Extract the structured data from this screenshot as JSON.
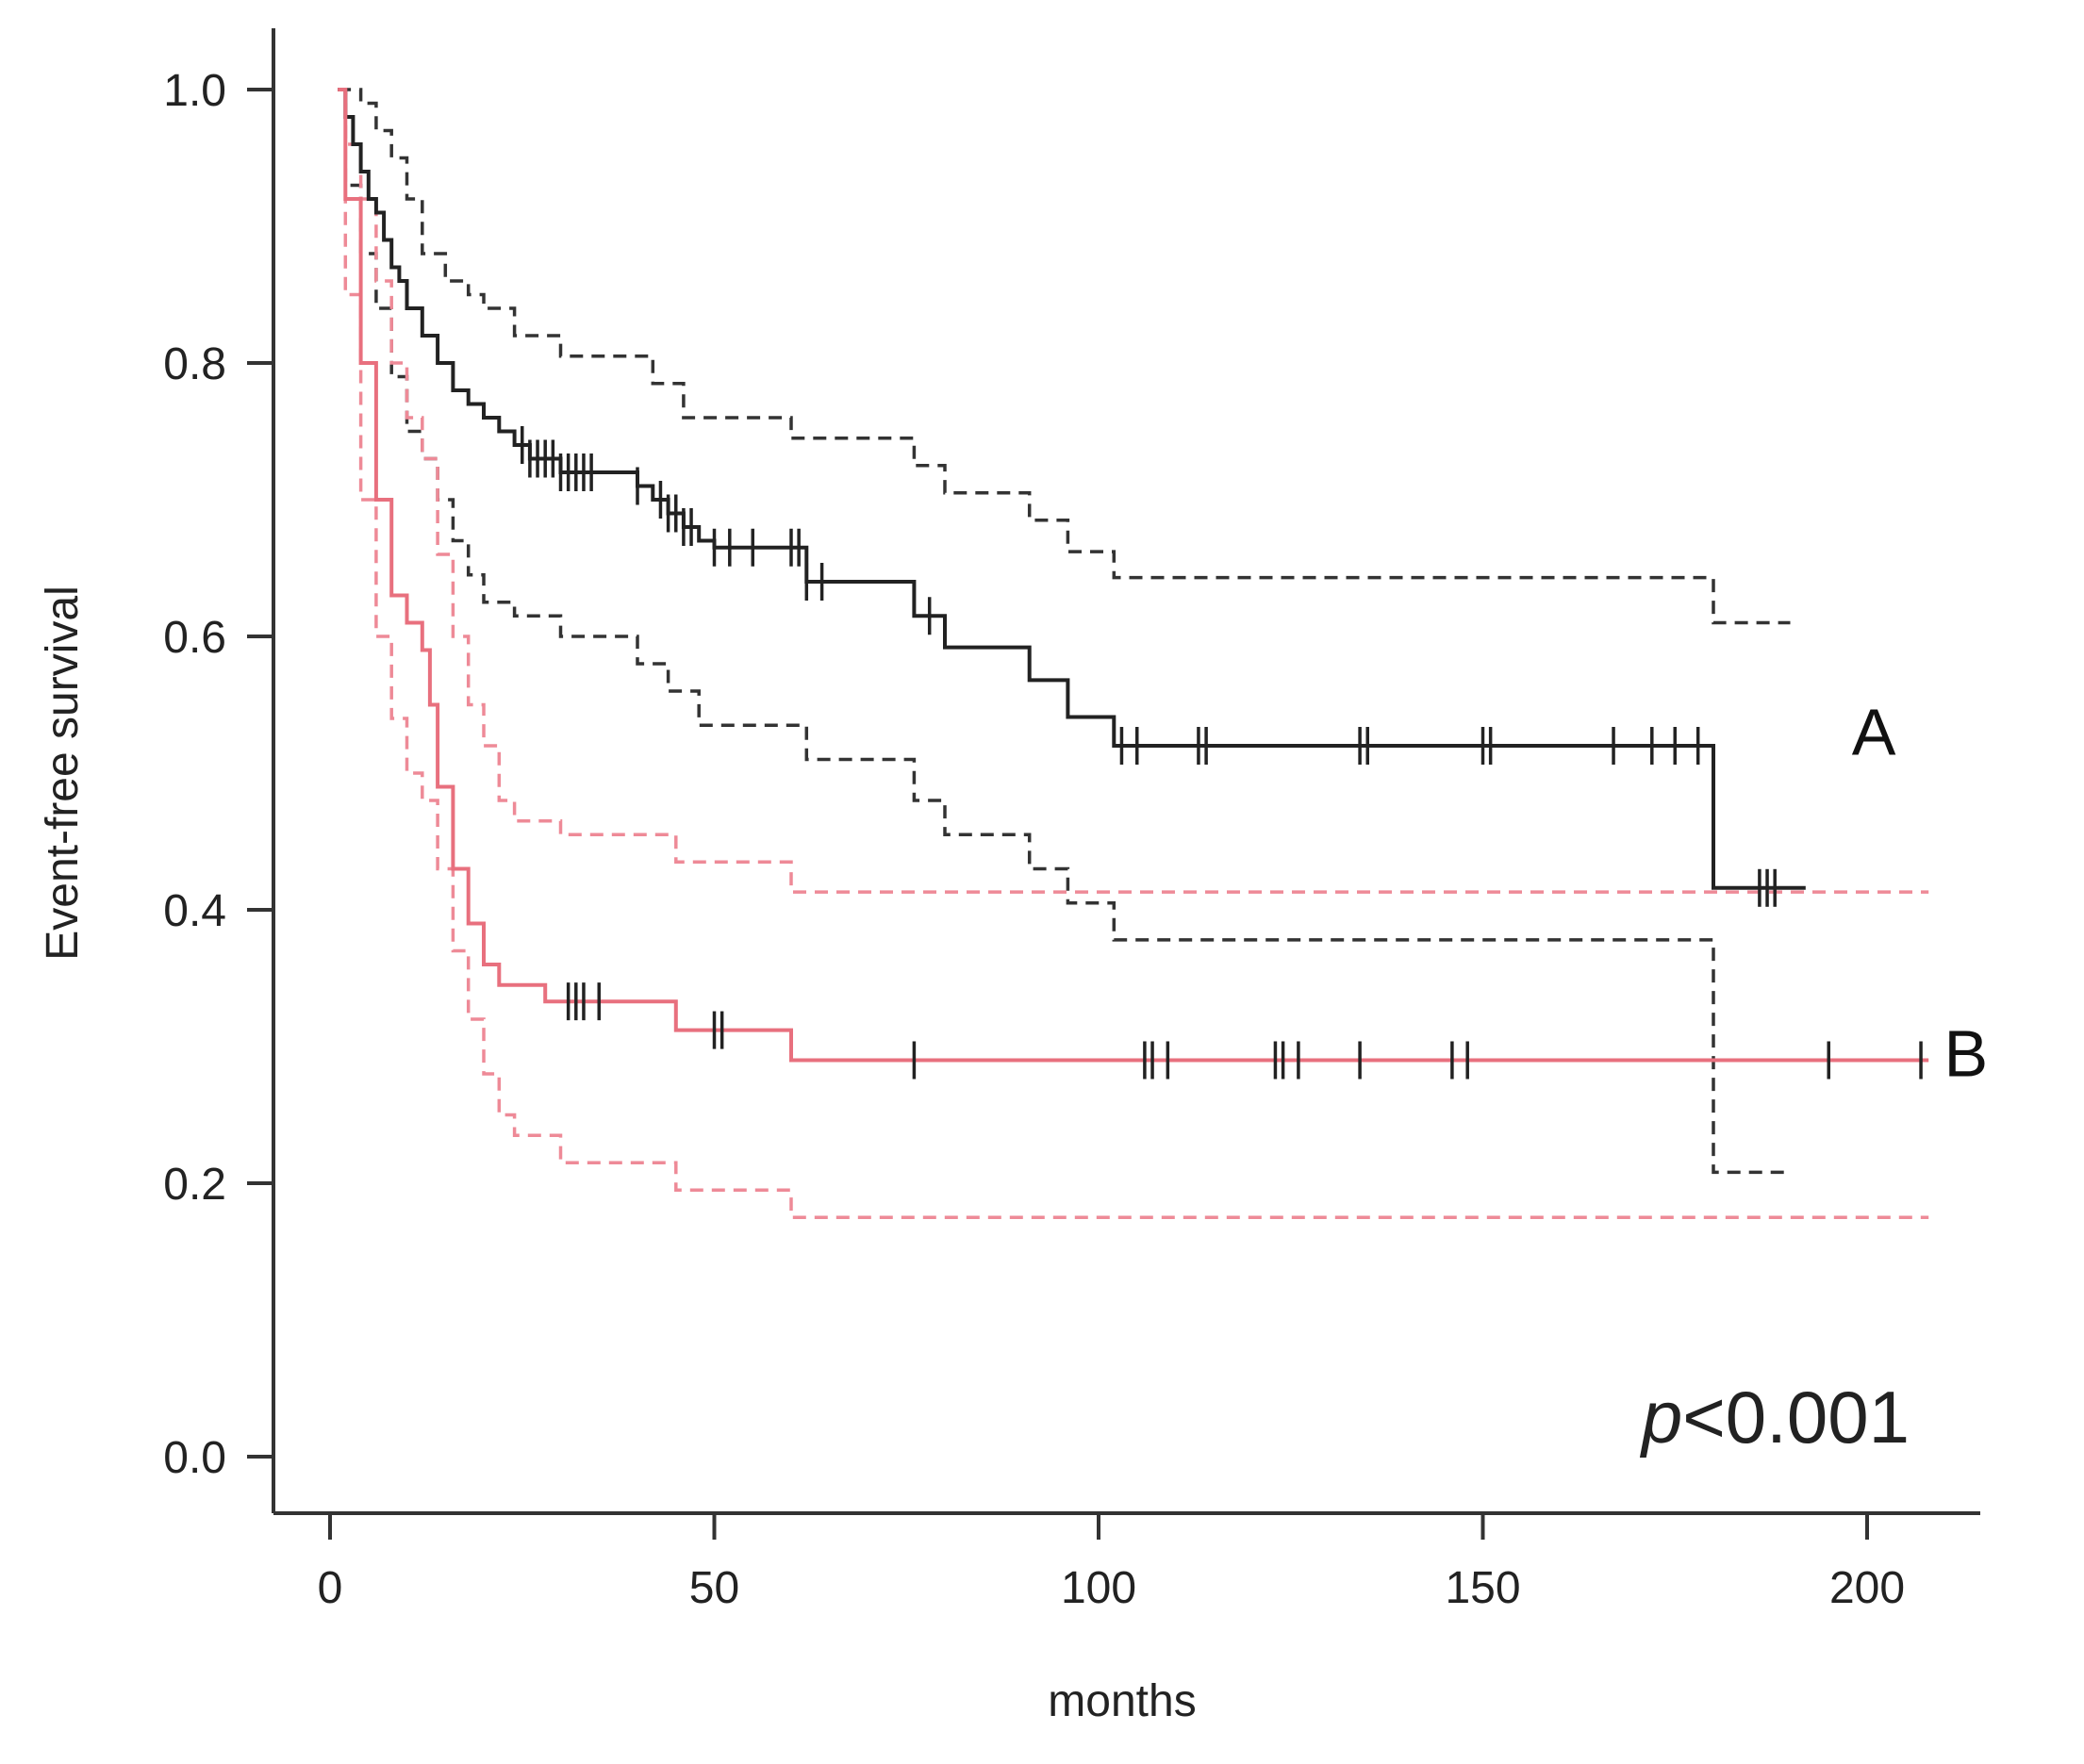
{
  "chart_data": {
    "type": "line",
    "subtype": "kaplan-meier",
    "title": "",
    "xlabel": "months",
    "ylabel": "Event-free survival",
    "xlim": [
      -8,
      215
    ],
    "ylim": [
      -0.05,
      1.03
    ],
    "xticks": [
      0,
      50,
      100,
      150,
      200
    ],
    "yticks": [
      0.0,
      0.2,
      0.4,
      0.6,
      0.8,
      1.0
    ],
    "xtick_labels": [
      "0",
      "50",
      "100",
      "150",
      "200"
    ],
    "ytick_labels": [
      "0.0",
      "0.2",
      "0.4",
      "0.6",
      "0.8",
      "1.0"
    ],
    "annotation": {
      "italic": "p",
      "rest": "<0.001"
    },
    "series": [
      {
        "name": "A",
        "label": "A",
        "color": "#222222",
        "label_point": [
          198,
          0.53
        ],
        "survival": [
          [
            1,
            1.0
          ],
          [
            2,
            0.98
          ],
          [
            3,
            0.96
          ],
          [
            4,
            0.94
          ],
          [
            5,
            0.92
          ],
          [
            6,
            0.91
          ],
          [
            7,
            0.89
          ],
          [
            8,
            0.87
          ],
          [
            9,
            0.86
          ],
          [
            10,
            0.84
          ],
          [
            12,
            0.82
          ],
          [
            14,
            0.8
          ],
          [
            16,
            0.78
          ],
          [
            18,
            0.77
          ],
          [
            20,
            0.76
          ],
          [
            22,
            0.75
          ],
          [
            24,
            0.74
          ],
          [
            26,
            0.73
          ],
          [
            30,
            0.72
          ],
          [
            40,
            0.71
          ],
          [
            42,
            0.7
          ],
          [
            44,
            0.69
          ],
          [
            46,
            0.68
          ],
          [
            48,
            0.67
          ],
          [
            50,
            0.665
          ],
          [
            62,
            0.64
          ],
          [
            76,
            0.615
          ],
          [
            80,
            0.592
          ],
          [
            91,
            0.568
          ],
          [
            96,
            0.541
          ],
          [
            102,
            0.52
          ],
          [
            180,
            0.52
          ],
          [
            180,
            0.416
          ],
          [
            192,
            0.416
          ]
        ],
        "upper": [
          [
            1,
            1.0
          ],
          [
            4,
            0.99
          ],
          [
            6,
            0.97
          ],
          [
            8,
            0.95
          ],
          [
            10,
            0.92
          ],
          [
            12,
            0.88
          ],
          [
            15,
            0.86
          ],
          [
            18,
            0.85
          ],
          [
            20,
            0.84
          ],
          [
            24,
            0.82
          ],
          [
            30,
            0.805
          ],
          [
            40,
            0.805
          ],
          [
            42,
            0.785
          ],
          [
            46,
            0.76
          ],
          [
            60,
            0.745
          ],
          [
            76,
            0.725
          ],
          [
            80,
            0.705
          ],
          [
            91,
            0.685
          ],
          [
            96,
            0.662
          ],
          [
            102,
            0.643
          ],
          [
            180,
            0.643
          ],
          [
            180,
            0.61
          ],
          [
            190,
            0.61
          ]
        ],
        "lower": [
          [
            1,
            1.0
          ],
          [
            2,
            0.93
          ],
          [
            4,
            0.88
          ],
          [
            6,
            0.84
          ],
          [
            8,
            0.79
          ],
          [
            10,
            0.75
          ],
          [
            12,
            0.73
          ],
          [
            14,
            0.7
          ],
          [
            16,
            0.67
          ],
          [
            18,
            0.645
          ],
          [
            20,
            0.625
          ],
          [
            24,
            0.615
          ],
          [
            30,
            0.6
          ],
          [
            40,
            0.58
          ],
          [
            44,
            0.56
          ],
          [
            48,
            0.535
          ],
          [
            62,
            0.51
          ],
          [
            76,
            0.48
          ],
          [
            80,
            0.455
          ],
          [
            91,
            0.43
          ],
          [
            96,
            0.405
          ],
          [
            102,
            0.378
          ],
          [
            180,
            0.378
          ],
          [
            180,
            0.208
          ],
          [
            190,
            0.208
          ]
        ],
        "censor_times": [
          25,
          26,
          27,
          28,
          29,
          30,
          31,
          32,
          33,
          34,
          40,
          43,
          44,
          45,
          46,
          47,
          50,
          52,
          55,
          60,
          61,
          62,
          64,
          78,
          103,
          105,
          113,
          114,
          134,
          135,
          150,
          151,
          167,
          172,
          175,
          178,
          186,
          187,
          188
        ]
      },
      {
        "name": "B",
        "label": "B",
        "color": "#e8707e",
        "label_point": [
          210,
          0.295
        ],
        "survival": [
          [
            1,
            1.0
          ],
          [
            2,
            0.92
          ],
          [
            4,
            0.8
          ],
          [
            6,
            0.7
          ],
          [
            8,
            0.63
          ],
          [
            10,
            0.61
          ],
          [
            12,
            0.59
          ],
          [
            13,
            0.55
          ],
          [
            14,
            0.49
          ],
          [
            16,
            0.43
          ],
          [
            18,
            0.39
          ],
          [
            20,
            0.36
          ],
          [
            22,
            0.345
          ],
          [
            28,
            0.333
          ],
          [
            45,
            0.312
          ],
          [
            60,
            0.29
          ],
          [
            208,
            0.29
          ]
        ],
        "upper": [
          [
            1,
            1.0
          ],
          [
            2,
            0.96
          ],
          [
            4,
            0.92
          ],
          [
            6,
            0.86
          ],
          [
            8,
            0.8
          ],
          [
            10,
            0.76
          ],
          [
            12,
            0.73
          ],
          [
            14,
            0.66
          ],
          [
            16,
            0.6
          ],
          [
            18,
            0.55
          ],
          [
            20,
            0.52
          ],
          [
            22,
            0.48
          ],
          [
            24,
            0.465
          ],
          [
            30,
            0.455
          ],
          [
            45,
            0.435
          ],
          [
            60,
            0.413
          ],
          [
            208,
            0.413
          ]
        ],
        "lower": [
          [
            1,
            1.0
          ],
          [
            2,
            0.85
          ],
          [
            4,
            0.7
          ],
          [
            6,
            0.6
          ],
          [
            8,
            0.54
          ],
          [
            10,
            0.5
          ],
          [
            12,
            0.48
          ],
          [
            14,
            0.43
          ],
          [
            16,
            0.37
          ],
          [
            18,
            0.32
          ],
          [
            20,
            0.28
          ],
          [
            22,
            0.25
          ],
          [
            24,
            0.235
          ],
          [
            30,
            0.215
          ],
          [
            45,
            0.195
          ],
          [
            60,
            0.175
          ],
          [
            208,
            0.175
          ]
        ],
        "censor_times": [
          31,
          32,
          33,
          35,
          50,
          51,
          76,
          106,
          107,
          109,
          123,
          124,
          126,
          134,
          146,
          148,
          195,
          207
        ]
      }
    ]
  }
}
